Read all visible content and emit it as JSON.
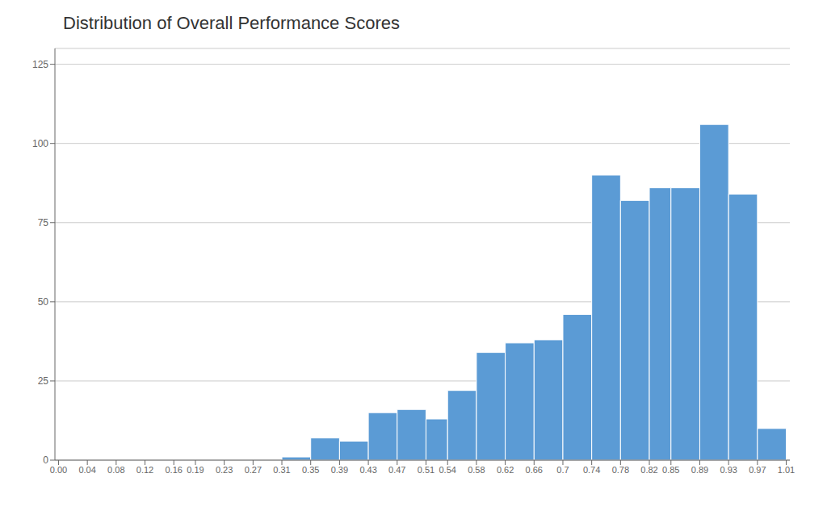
{
  "chart_data": {
    "type": "histogram",
    "title": "Distribution of Overall Performance Scores",
    "bins": [
      0.0,
      0.04,
      0.08,
      0.12,
      0.16,
      0.19,
      0.23,
      0.27,
      0.31,
      0.35,
      0.39,
      0.43,
      0.47,
      0.51,
      0.54,
      0.58,
      0.62,
      0.66,
      0.7,
      0.74,
      0.78,
      0.82,
      0.85,
      0.89,
      0.93,
      0.97,
      1.01
    ],
    "values": [
      0,
      0,
      0,
      0,
      0,
      0,
      0,
      0,
      1,
      7,
      6,
      15,
      16,
      13,
      22,
      34,
      37,
      38,
      46,
      90,
      82,
      86,
      86,
      106,
      84,
      10
    ],
    "color": "#5b9bd5",
    "xlim": [
      -0.005,
      1.015
    ],
    "xticks": [
      {
        "value": 0.0,
        "label": "0.00"
      },
      0.04,
      0.08,
      0.12,
      0.16,
      0.19,
      0.23,
      0.27,
      0.31,
      0.35,
      0.39,
      0.43,
      0.47,
      0.51,
      0.54,
      0.58,
      0.62,
      0.66,
      0.7,
      0.74,
      0.78,
      0.82,
      0.85,
      0.89,
      0.93,
      0.97,
      1.01
    ],
    "ylim": [
      0,
      130
    ],
    "yticks": [
      0,
      25,
      50,
      75,
      100,
      125
    ],
    "grid": true
  }
}
